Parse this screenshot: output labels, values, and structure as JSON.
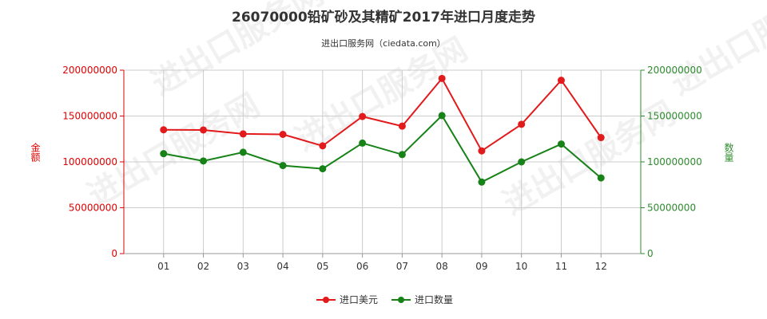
{
  "header": {
    "title": "26070000铅矿砂及其精矿2017年进口月度走势",
    "subtitle": "进出口服务网（ciedata.com）"
  },
  "watermark": "进出口服务网",
  "colors": {
    "left_axis": "#e00000",
    "right_axis": "#2e8b2e",
    "series_value": "#e31a1c",
    "series_quantity": "#178217",
    "grid": "#cccccc",
    "plot_border": "#999999"
  },
  "chart_data": {
    "type": "line",
    "title": "26070000铅矿砂及其精矿2017年进口月度走势",
    "subtitle": "进出口服务网（ciedata.com）",
    "categories": [
      "01",
      "02",
      "03",
      "04",
      "05",
      "06",
      "07",
      "08",
      "09",
      "10",
      "11",
      "12"
    ],
    "y_left": {
      "label": "金额",
      "range": [
        0,
        200000000
      ],
      "ticks": [
        "0",
        "50000000",
        "100000000",
        "150000000",
        "200000000"
      ]
    },
    "y_right": {
      "label": "数量",
      "range": [
        0,
        200000000
      ],
      "ticks": [
        "0",
        "50000000",
        "100000000",
        "150000000",
        "200000000"
      ]
    },
    "grid": true,
    "legend_position": "bottom",
    "series": [
      {
        "name": "进口美元",
        "axis": "left",
        "color": "#e31a1c",
        "values": [
          135000000,
          134800000,
          130500000,
          130000000,
          117500000,
          149500000,
          139000000,
          191000000,
          112000000,
          141000000,
          189000000,
          126500000
        ]
      },
      {
        "name": "进口数量",
        "axis": "right",
        "color": "#178217",
        "values": [
          109000000,
          101000000,
          110500000,
          96000000,
          92500000,
          120500000,
          108000000,
          150500000,
          78000000,
          100000000,
          119500000,
          82500000
        ]
      }
    ]
  }
}
